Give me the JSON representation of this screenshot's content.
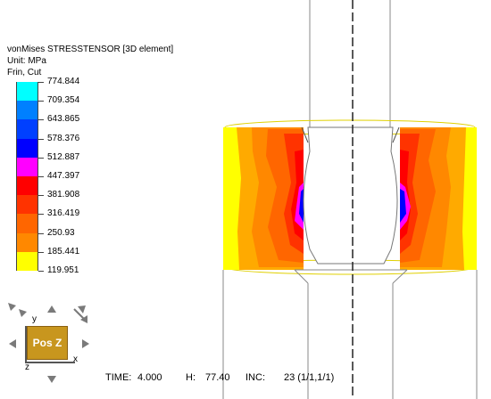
{
  "legend": {
    "title": "vonMises STRESSTENSOR [3D element]",
    "unit": "Unit: MPa",
    "mode": "Frin, Cut",
    "values": [
      "774.844",
      "709.354",
      "643.865",
      "578.376",
      "512.887",
      "447.397",
      "381.908",
      "316.419",
      "250.93",
      "185.441",
      "119.951"
    ],
    "colors": [
      "#00ffff",
      "#0080ff",
      "#0040ff",
      "#0000ff",
      "#ff00ff",
      "#ff0000",
      "#ff3300",
      "#ff6600",
      "#ff8800",
      "#ffaa00",
      "#ffff00"
    ]
  },
  "viewcube": {
    "face_label": "Pos Z",
    "axis_y": "y",
    "axis_x": "x",
    "axis_z": "z",
    "face_color": "#c8961e"
  },
  "status": {
    "time_label": "TIME:",
    "time_value": "4.000",
    "h_label": "H:",
    "h_value": "77.40",
    "inc_label": "INC:",
    "inc_value": "23 (1/1,1/1)"
  }
}
